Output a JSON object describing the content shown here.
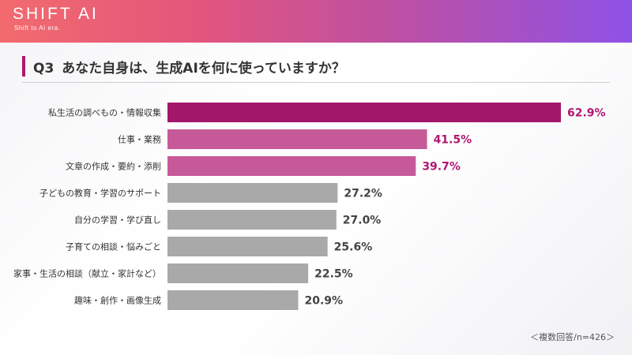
{
  "brand": {
    "name": "SHIFT AI",
    "tagline": "Shift to AI era."
  },
  "question": {
    "number": "Q3",
    "text": "あなた自身は、生成AIを何に使っていますか？"
  },
  "footnote": "＜複数回答/n=426＞",
  "colors": {
    "top1": "#a3176a",
    "top2_3": "#c65a99",
    "others": "#a9a9a9",
    "accent_text": "#b0176f",
    "other_text": "#444444"
  },
  "chart_data": {
    "type": "bar",
    "orientation": "horizontal",
    "categories": [
      "私生活の調べもの・情報収集",
      "仕事・業務",
      "文章の作成・要約・添削",
      "子どもの教育・学習のサポート",
      "自分の学習・学び直し",
      "子育ての相談・悩みごと",
      "家事・生活の相談（献立・家計など）",
      "趣味・創作・画像生成"
    ],
    "values": [
      62.9,
      41.5,
      39.7,
      27.2,
      27.0,
      25.6,
      22.5,
      20.9
    ],
    "labels": [
      "62.9%",
      "41.5%",
      "39.7%",
      "27.2%",
      "27.0%",
      "25.6%",
      "22.5%",
      "20.9%"
    ],
    "unit": "%",
    "title": "",
    "xlabel": "",
    "ylabel": "",
    "xlim": [
      0,
      70
    ],
    "grid": false,
    "legend": "none"
  }
}
